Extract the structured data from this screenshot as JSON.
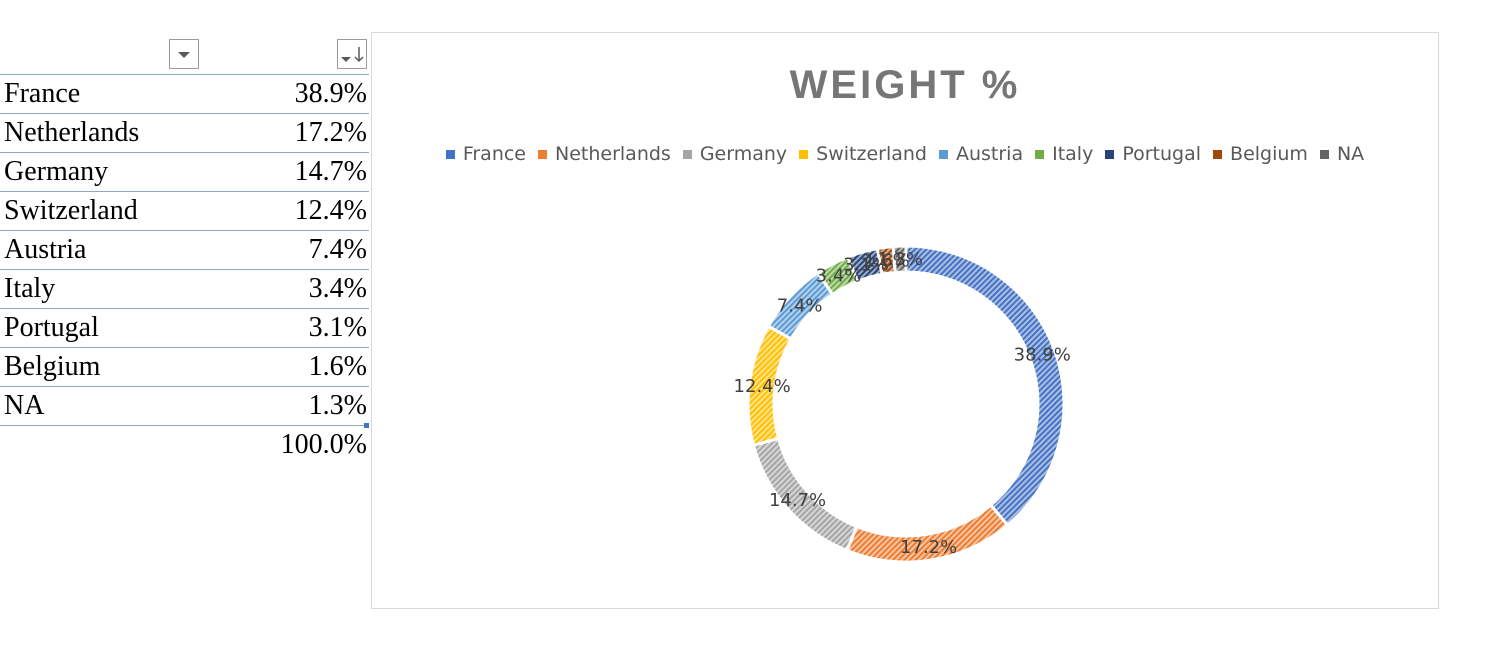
{
  "table": {
    "rows": [
      {
        "label": "France",
        "value": "38.9%"
      },
      {
        "label": "Netherlands",
        "value": "17.2%"
      },
      {
        "label": "Germany",
        "value": "14.7%"
      },
      {
        "label": "Switzerland",
        "value": "12.4%"
      },
      {
        "label": "Austria",
        "value": "7.4%"
      },
      {
        "label": "Italy",
        "value": "3.4%"
      },
      {
        "label": "Portugal",
        "value": "3.1%"
      },
      {
        "label": "Belgium",
        "value": "1.6%"
      },
      {
        "label": "NA",
        "value": "1.3%"
      }
    ],
    "total": "100.0%"
  },
  "chart_data": {
    "type": "pie",
    "variant": "doughnut",
    "title": "WEIGHT %",
    "legend_position": "top",
    "categories": [
      "France",
      "Netherlands",
      "Germany",
      "Switzerland",
      "Austria",
      "Italy",
      "Portugal",
      "Belgium",
      "NA"
    ],
    "values": [
      38.9,
      17.2,
      14.7,
      12.4,
      7.4,
      3.4,
      3.1,
      1.6,
      1.3
    ],
    "labels": [
      "38.9%",
      "17.2%",
      "14.7%",
      "12.4%",
      "7.4%",
      "3.4%",
      "3.1%",
      "1.6%",
      "1.3%"
    ],
    "colors": [
      "#4472c4",
      "#ed7d31",
      "#a5a5a5",
      "#ffc000",
      "#5b9bd5",
      "#70ad47",
      "#264478",
      "#9e480e",
      "#636363"
    ],
    "fill_pattern": "diagonal-hatch"
  }
}
